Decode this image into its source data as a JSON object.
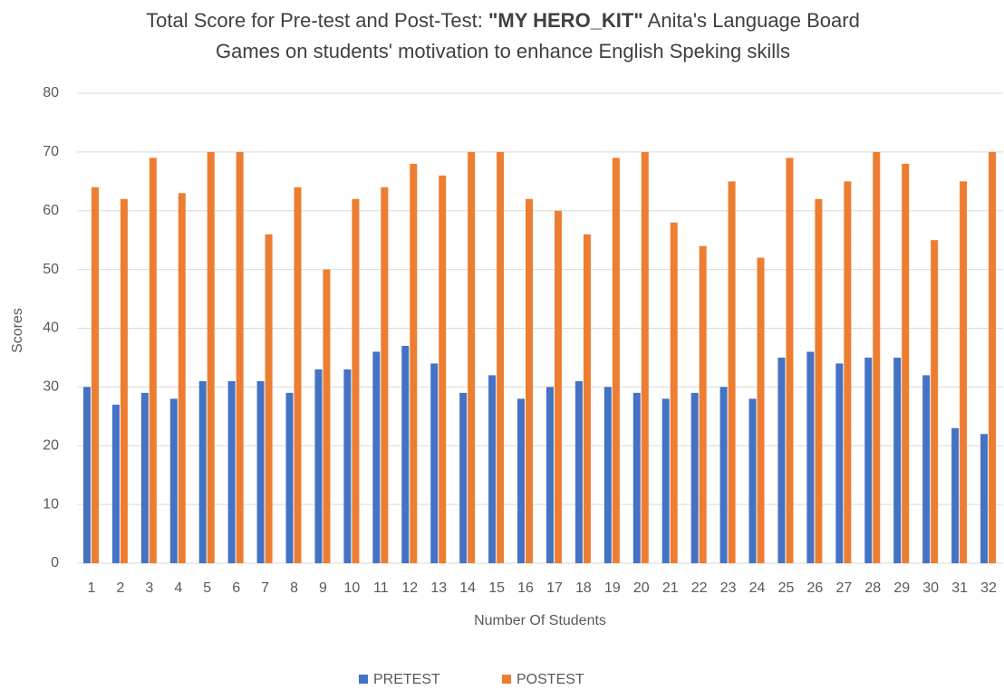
{
  "chart_data": {
    "type": "bar",
    "title": [
      [
        "Total Score for Pre-test and Post-Test:  ",
        "\"MY HERO_KIT\"",
        " Anita's Language Board"
      ],
      [
        "Games on students' motivation to enhance English Speking skills"
      ]
    ],
    "x_label": "Number Of Students",
    "y_label": "Scores",
    "categories": [
      "1",
      "2",
      "3",
      "4",
      "5",
      "6",
      "7",
      "8",
      "9",
      "10",
      "11",
      "12",
      "13",
      "14",
      "15",
      "16",
      "17",
      "18",
      "19",
      "20",
      "21",
      "22",
      "23",
      "24",
      "25",
      "26",
      "27",
      "28",
      "29",
      "30",
      "31",
      "32"
    ],
    "series": [
      {
        "name": "PRETEST",
        "color": "#4472c4",
        "values": [
          30,
          27,
          29,
          28,
          31,
          31,
          31,
          29,
          33,
          33,
          36,
          37,
          34,
          29,
          32,
          28,
          30,
          31,
          30,
          29,
          28,
          29,
          30,
          28,
          35,
          36,
          34,
          35,
          35,
          32,
          23,
          22
        ]
      },
      {
        "name": "POSTEST",
        "color": "#ed7d31",
        "values": [
          64,
          62,
          69,
          63,
          70,
          70,
          56,
          64,
          50,
          62,
          64,
          68,
          66,
          70,
          70,
          62,
          60,
          56,
          69,
          70,
          58,
          54,
          65,
          52,
          69,
          62,
          65,
          70,
          68,
          55,
          65,
          70
        ]
      }
    ],
    "ylim": [
      0,
      80
    ],
    "yticks": [
      0,
      10,
      20,
      30,
      40,
      50,
      60,
      70,
      80
    ],
    "grid": true,
    "legend": "bottom"
  }
}
